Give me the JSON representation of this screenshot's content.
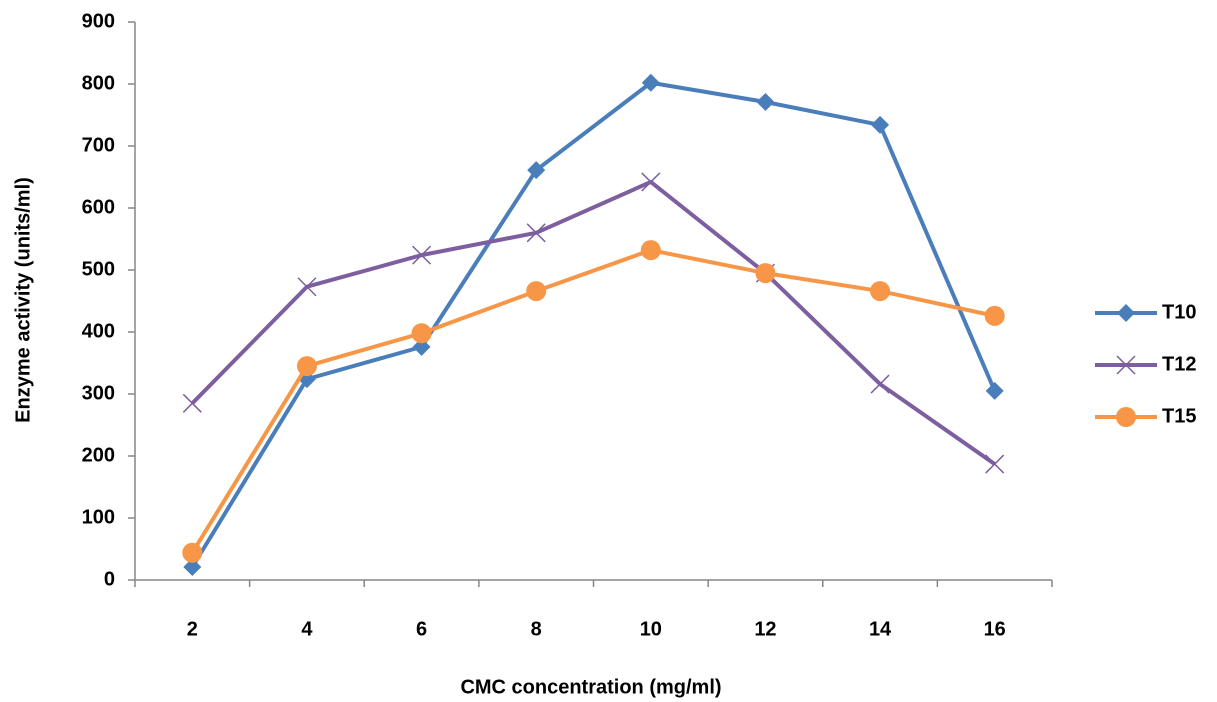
{
  "chart_data": {
    "type": "line",
    "x_label": "CMC concentration (mg/ml)",
    "y_label": "Enzyme activity (units/ml)",
    "categories": [
      "2",
      "4",
      "6",
      "8",
      "10",
      "12",
      "14",
      "16"
    ],
    "series": [
      {
        "name": "T10",
        "color": "#4a7ebb",
        "marker": "diamond",
        "values": [
          21,
          324,
          376,
          661,
          802,
          771,
          734,
          305
        ]
      },
      {
        "name": "T12",
        "color": "#7d5fa0",
        "marker": "x",
        "values": [
          285,
          473,
          524,
          560,
          642,
          495,
          316,
          187
        ]
      },
      {
        "name": "T15",
        "color": "#f79646",
        "marker": "circle",
        "values": [
          44,
          345,
          398,
          466,
          532,
          495,
          466,
          426
        ]
      }
    ],
    "ylim": [
      0,
      900
    ],
    "yticks": [
      0,
      100,
      200,
      300,
      400,
      500,
      600,
      700,
      800,
      900
    ],
    "grid": false,
    "legend": "right"
  }
}
